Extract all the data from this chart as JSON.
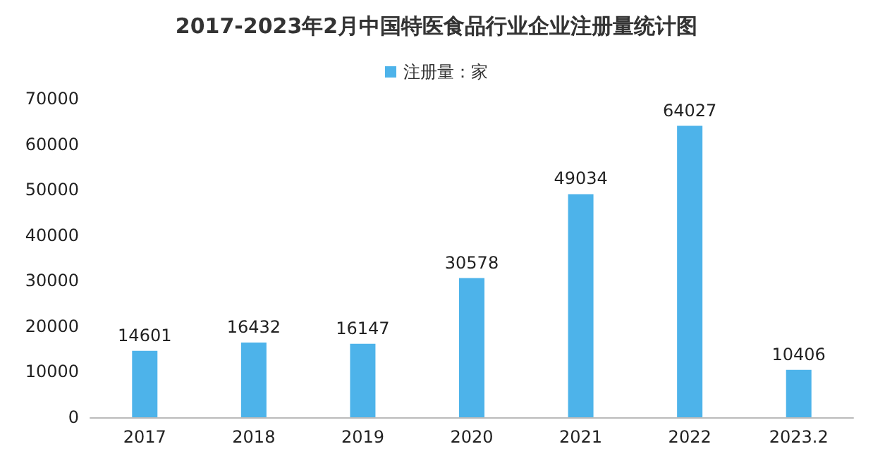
{
  "chart_data": {
    "type": "bar",
    "title": "2017-2023年2月中国特医食品行业企业注册量统计图",
    "categories": [
      "2017",
      "2018",
      "2019",
      "2020",
      "2021",
      "2022",
      "2023.2"
    ],
    "series": [
      {
        "name": "注册量：家",
        "color": "#4db3ea",
        "values": [
          14601,
          16432,
          16147,
          30578,
          49034,
          64027,
          10406
        ]
      }
    ],
    "ylim": [
      0,
      70000
    ],
    "yticks": [
      0,
      10000,
      20000,
      30000,
      40000,
      50000,
      60000,
      70000
    ],
    "grid": false,
    "legend": "top",
    "data_labels": true
  }
}
